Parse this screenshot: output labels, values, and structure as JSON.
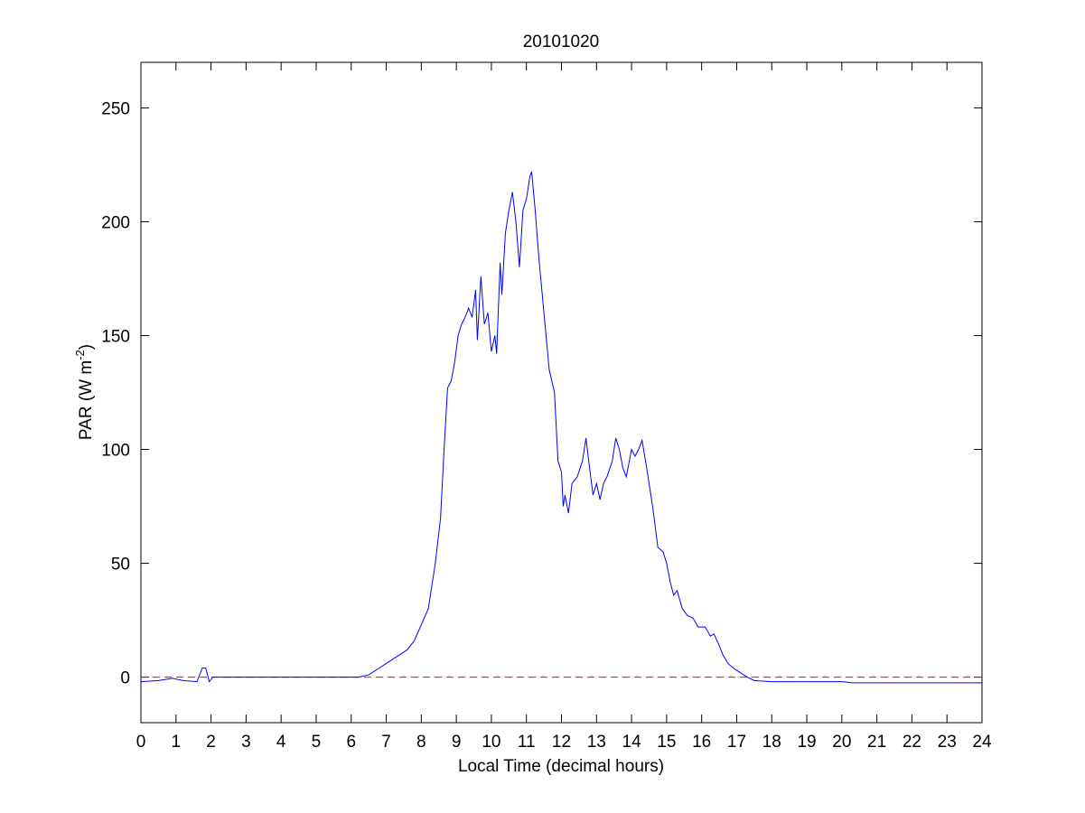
{
  "chart_data": {
    "type": "line",
    "title": "20101020",
    "xlabel": "Local Time (decimal hours)",
    "ylabel": {
      "text": "PAR (W m",
      "superscript": "-2",
      "suffix": ")"
    },
    "xlim": [
      0,
      24
    ],
    "ylim": [
      -20,
      270
    ],
    "xticks": [
      0,
      1,
      2,
      3,
      4,
      5,
      6,
      7,
      8,
      9,
      10,
      11,
      12,
      13,
      14,
      15,
      16,
      17,
      18,
      19,
      20,
      21,
      22,
      23,
      24
    ],
    "yticks": [
      0,
      50,
      100,
      150,
      200,
      250
    ],
    "grid": false,
    "reference_line": {
      "value": 0,
      "color": "#ff0000",
      "style": "dashed"
    },
    "series": [
      {
        "color": "#0000ff",
        "x": [
          0,
          0.5,
          0.9,
          1.2,
          1.6,
          1.75,
          1.85,
          1.95,
          2.05,
          2.5,
          6.2,
          6.5,
          6.8,
          7.0,
          7.3,
          7.6,
          7.8,
          8.0,
          8.2,
          8.4,
          8.55,
          8.65,
          8.75,
          8.85,
          8.95,
          9.05,
          9.15,
          9.25,
          9.35,
          9.45,
          9.55,
          9.6,
          9.7,
          9.8,
          9.9,
          10.0,
          10.1,
          10.15,
          10.25,
          10.3,
          10.4,
          10.5,
          10.6,
          10.7,
          10.8,
          10.9,
          11.0,
          11.1,
          11.15,
          11.25,
          11.35,
          11.5,
          11.65,
          11.8,
          11.9,
          12.0,
          12.05,
          12.1,
          12.2,
          12.3,
          12.45,
          12.6,
          12.7,
          12.8,
          12.9,
          13.0,
          13.1,
          13.2,
          13.3,
          13.45,
          13.55,
          13.65,
          13.75,
          13.85,
          14.0,
          14.1,
          14.2,
          14.3,
          14.45,
          14.6,
          14.75,
          14.9,
          15.0,
          15.1,
          15.2,
          15.3,
          15.45,
          15.6,
          15.75,
          15.9,
          16.1,
          16.25,
          16.35,
          16.5,
          16.6,
          16.75,
          16.9,
          17.1,
          17.3,
          17.5,
          18.0,
          19.0,
          20.0,
          20.3,
          21.0,
          24.0
        ],
        "values": [
          -2,
          -1.5,
          -0.5,
          -1.5,
          -2,
          4,
          4,
          -2,
          0,
          0,
          0,
          1,
          4,
          6,
          9,
          12,
          16,
          23,
          30,
          50,
          70,
          100,
          127,
          130,
          138,
          150,
          155,
          158,
          162,
          158,
          170,
          148,
          176,
          155,
          160,
          143,
          150,
          142,
          182,
          168,
          195,
          205,
          213,
          200,
          180,
          205,
          210,
          220,
          222,
          205,
          185,
          160,
          135,
          125,
          95,
          90,
          75,
          80,
          72,
          85,
          88,
          95,
          105,
          92,
          80,
          85,
          78,
          85,
          88,
          95,
          105,
          100,
          92,
          88,
          100,
          97,
          100,
          104,
          90,
          75,
          57,
          55,
          50,
          42,
          36,
          38,
          30,
          27,
          26,
          22,
          22,
          18,
          19,
          14,
          10,
          6,
          4,
          2,
          0,
          -1.5,
          -2,
          -2,
          -2,
          -2.5,
          -2.5,
          -2.5
        ]
      }
    ]
  }
}
